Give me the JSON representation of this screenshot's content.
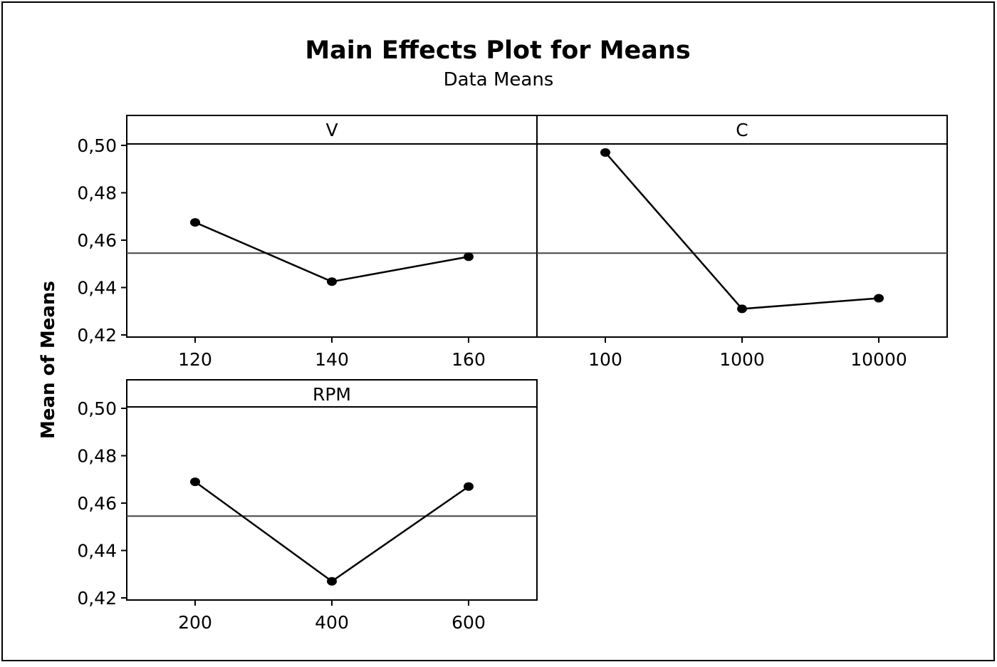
{
  "chart_data": {
    "type": "line",
    "title": "Main Effects Plot for Means",
    "subtitle": "Data Means",
    "ylabel": "Mean of Means",
    "ylim": [
      0.42,
      0.5
    ],
    "y_ticks": [
      "0,42",
      "0,44",
      "0,46",
      "0,48",
      "0,50"
    ],
    "reference_mean": 0.4545,
    "grid": false,
    "legend": "none",
    "panels": [
      {
        "name": "V",
        "categories": [
          "120",
          "140",
          "160"
        ],
        "values": [
          0.4675,
          0.4425,
          0.453
        ]
      },
      {
        "name": "C",
        "categories": [
          "100",
          "1000",
          "10000"
        ],
        "values": [
          0.497,
          0.431,
          0.4355
        ]
      },
      {
        "name": "RPM",
        "categories": [
          "200",
          "400",
          "600"
        ],
        "values": [
          0.469,
          0.427,
          0.467
        ]
      }
    ]
  }
}
